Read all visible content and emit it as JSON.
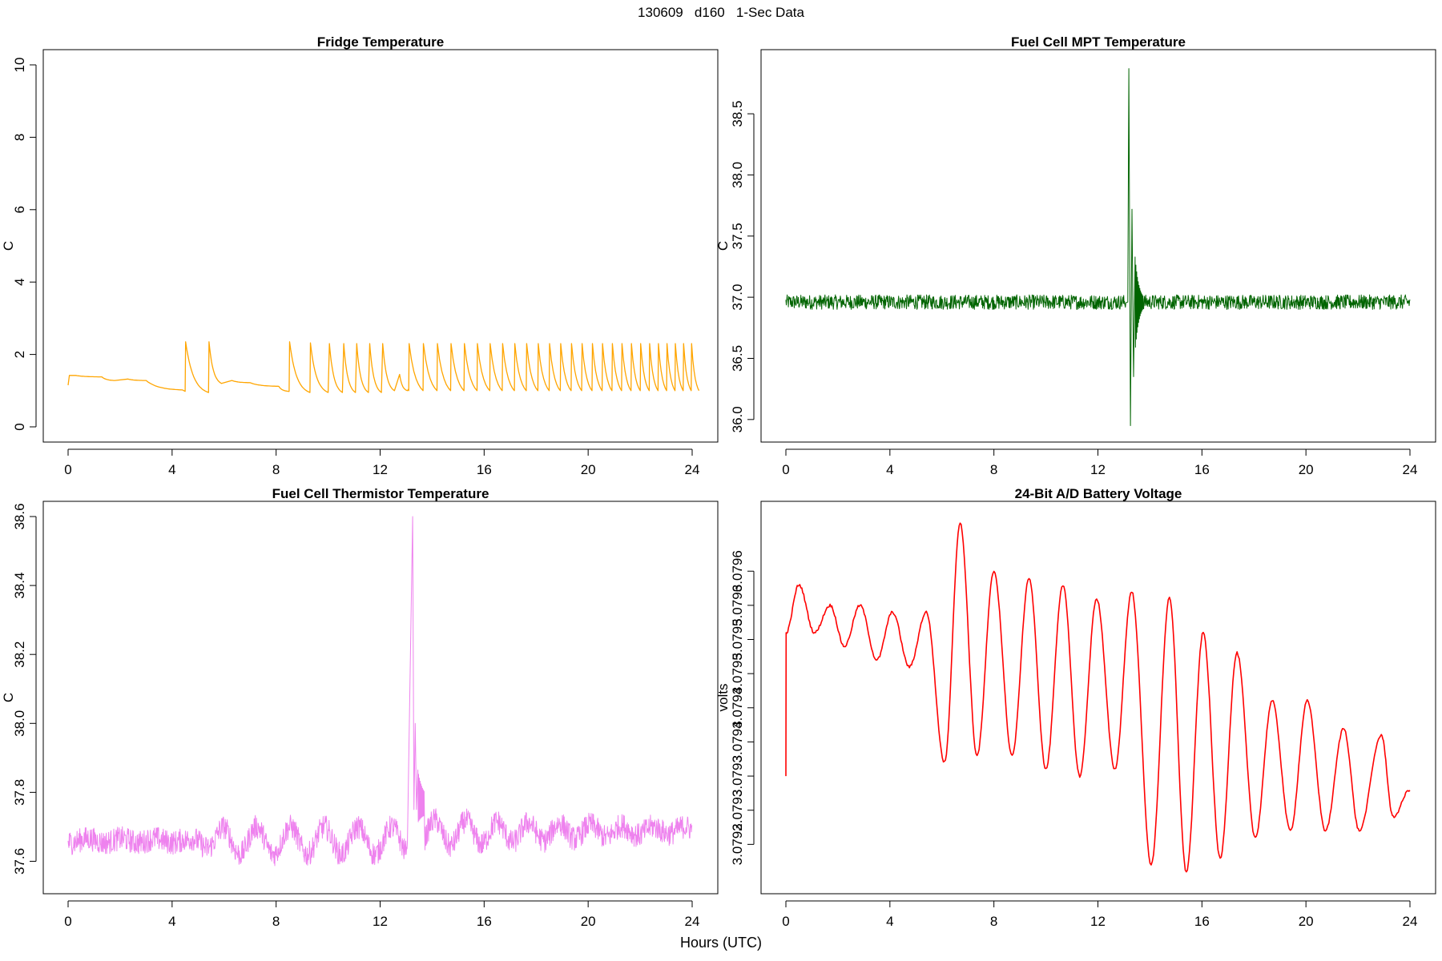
{
  "figure": {
    "title": "130609   d160   1-Sec Data",
    "xlabel": "Hours (UTC)"
  },
  "chart_data": [
    {
      "type": "line",
      "title": "Fridge Temperature",
      "xlabel": "",
      "ylabel": "C",
      "color": "#FFA500",
      "xlim": [
        0,
        24
      ],
      "ylim": [
        0,
        10
      ],
      "xticks": [
        0,
        4,
        8,
        12,
        16,
        20,
        24
      ],
      "yticks": [
        0,
        2,
        4,
        6,
        8,
        10
      ],
      "ytick_labels": [
        "0",
        "2",
        "4",
        "6",
        "8",
        "10"
      ],
      "x": [
        0,
        0.05,
        0.3,
        1.3,
        1.8,
        2.3,
        3,
        4.4,
        4.5,
        4.52,
        5.4,
        5.42,
        5.9,
        6.3,
        7,
        8.1,
        8.5,
        8.52,
        9.3,
        9.32,
        10,
        10.05,
        10.55,
        10.6,
        11.05,
        11.1,
        11.55,
        11.6,
        12.05,
        12.1,
        12.55,
        12.75,
        13.05,
        13.1
      ],
      "values": [
        1.15,
        1.42,
        1.42,
        1.38,
        1.28,
        1.32,
        1.28,
        1.02,
        0.98,
        2.35,
        0.95,
        2.35,
        1.2,
        1.28,
        1.22,
        1.12,
        0.98,
        2.35,
        0.95,
        2.32,
        0.95,
        2.3,
        0.95,
        2.3,
        0.95,
        2.3,
        0.95,
        2.3,
        0.95,
        2.3,
        1.0,
        1.45,
        1.0,
        1.05
      ],
      "oscillation": {
        "start": 13.1,
        "end": 24,
        "period_start": 0.55,
        "period_end": 0.3,
        "min": 1.0,
        "max": 2.3
      }
    },
    {
      "type": "line",
      "title": "Fuel Cell MPT Temperature",
      "xlabel": "",
      "ylabel": "C",
      "color": "#006400",
      "xlim": [
        0,
        24
      ],
      "ylim": [
        35.94,
        38.9
      ],
      "xticks": [
        0,
        4,
        8,
        12,
        16,
        20,
        24
      ],
      "yticks": [
        36.0,
        36.5,
        37.0,
        37.5,
        38.0,
        38.5
      ],
      "ytick_labels": [
        "36.0",
        "36.5",
        "37.0",
        "37.5",
        "38.0",
        "38.5"
      ],
      "baseline": 36.96,
      "noise_band": 0.06,
      "event": {
        "x": 13.15,
        "peak_max": 38.87,
        "peak_min": 35.95,
        "second_max": 37.72,
        "second_min": 36.35
      }
    },
    {
      "type": "line",
      "title": "Fuel Cell Thermistor Temperature",
      "xlabel": "",
      "ylabel": "C",
      "color": "#EE82EE",
      "xlim": [
        0,
        24
      ],
      "ylim": [
        37.55,
        38.6
      ],
      "xticks": [
        0,
        4,
        8,
        12,
        16,
        20,
        24
      ],
      "yticks": [
        37.6,
        37.8,
        38.0,
        38.2,
        38.4,
        38.6
      ],
      "ytick_labels": [
        "37.6",
        "37.8",
        "38.0",
        "38.2",
        "38.4",
        "38.6"
      ],
      "baseline": 37.66,
      "noise_band": 0.035,
      "event": {
        "x": 13.25,
        "peak_max": 38.6,
        "second_max": 38.0
      }
    },
    {
      "type": "line",
      "title": "24-Bit A/D Battery Voltage",
      "xlabel": "",
      "ylabel": "volts",
      "color": "#FF0000",
      "xlim": [
        0,
        24
      ],
      "ylim": [
        3.07915,
        3.07968
      ],
      "xticks": [
        0,
        4,
        8,
        12,
        16,
        20,
        24
      ],
      "yticks": [
        3.0792,
        3.07925,
        3.0793,
        3.07935,
        3.0794,
        3.07945,
        3.0795,
        3.07955,
        3.0796
      ],
      "ytick_labels": [
        "3.0792",
        "3.0793",
        "3.0793",
        "3.0794",
        "3.0794",
        "3.0795",
        "3.0795",
        "3.0796",
        "3.0796"
      ],
      "start": {
        "x": 0,
        "low": 3.0793,
        "high": 3.07951
      },
      "peaks": [
        {
          "x": 0.5,
          "value": 3.07958
        },
        {
          "x": 1.7,
          "value": 3.07955
        },
        {
          "x": 2.85,
          "value": 3.07955
        },
        {
          "x": 4.1,
          "value": 3.07954
        },
        {
          "x": 5.4,
          "value": 3.07954
        },
        {
          "x": 6.7,
          "value": 3.07967
        },
        {
          "x": 8.0,
          "value": 3.0796
        },
        {
          "x": 9.35,
          "value": 3.07959
        },
        {
          "x": 10.65,
          "value": 3.07958
        },
        {
          "x": 11.95,
          "value": 3.07956
        },
        {
          "x": 13.3,
          "value": 3.07957
        },
        {
          "x": 14.75,
          "value": 3.07956
        },
        {
          "x": 16.05,
          "value": 3.07951
        },
        {
          "x": 17.35,
          "value": 3.07948
        },
        {
          "x": 18.7,
          "value": 3.07941
        },
        {
          "x": 20.05,
          "value": 3.07941
        },
        {
          "x": 21.45,
          "value": 3.07937
        },
        {
          "x": 22.9,
          "value": 3.07936
        }
      ],
      "troughs": [
        {
          "x": 1.1,
          "value": 3.07951
        },
        {
          "x": 2.25,
          "value": 3.07949
        },
        {
          "x": 3.5,
          "value": 3.07947
        },
        {
          "x": 4.75,
          "value": 3.07946
        },
        {
          "x": 6.1,
          "value": 3.07932
        },
        {
          "x": 7.35,
          "value": 3.07933
        },
        {
          "x": 8.7,
          "value": 3.07933
        },
        {
          "x": 10.0,
          "value": 3.07931
        },
        {
          "x": 11.3,
          "value": 3.0793
        },
        {
          "x": 12.65,
          "value": 3.07931
        },
        {
          "x": 14.05,
          "value": 3.07917
        },
        {
          "x": 15.4,
          "value": 3.07916
        },
        {
          "x": 16.7,
          "value": 3.07918
        },
        {
          "x": 18.05,
          "value": 3.07921
        },
        {
          "x": 19.4,
          "value": 3.07922
        },
        {
          "x": 20.75,
          "value": 3.07922
        },
        {
          "x": 22.05,
          "value": 3.07922
        },
        {
          "x": 23.35,
          "value": 3.07924
        }
      ],
      "end": {
        "x": 24,
        "value": 3.07928
      }
    }
  ]
}
